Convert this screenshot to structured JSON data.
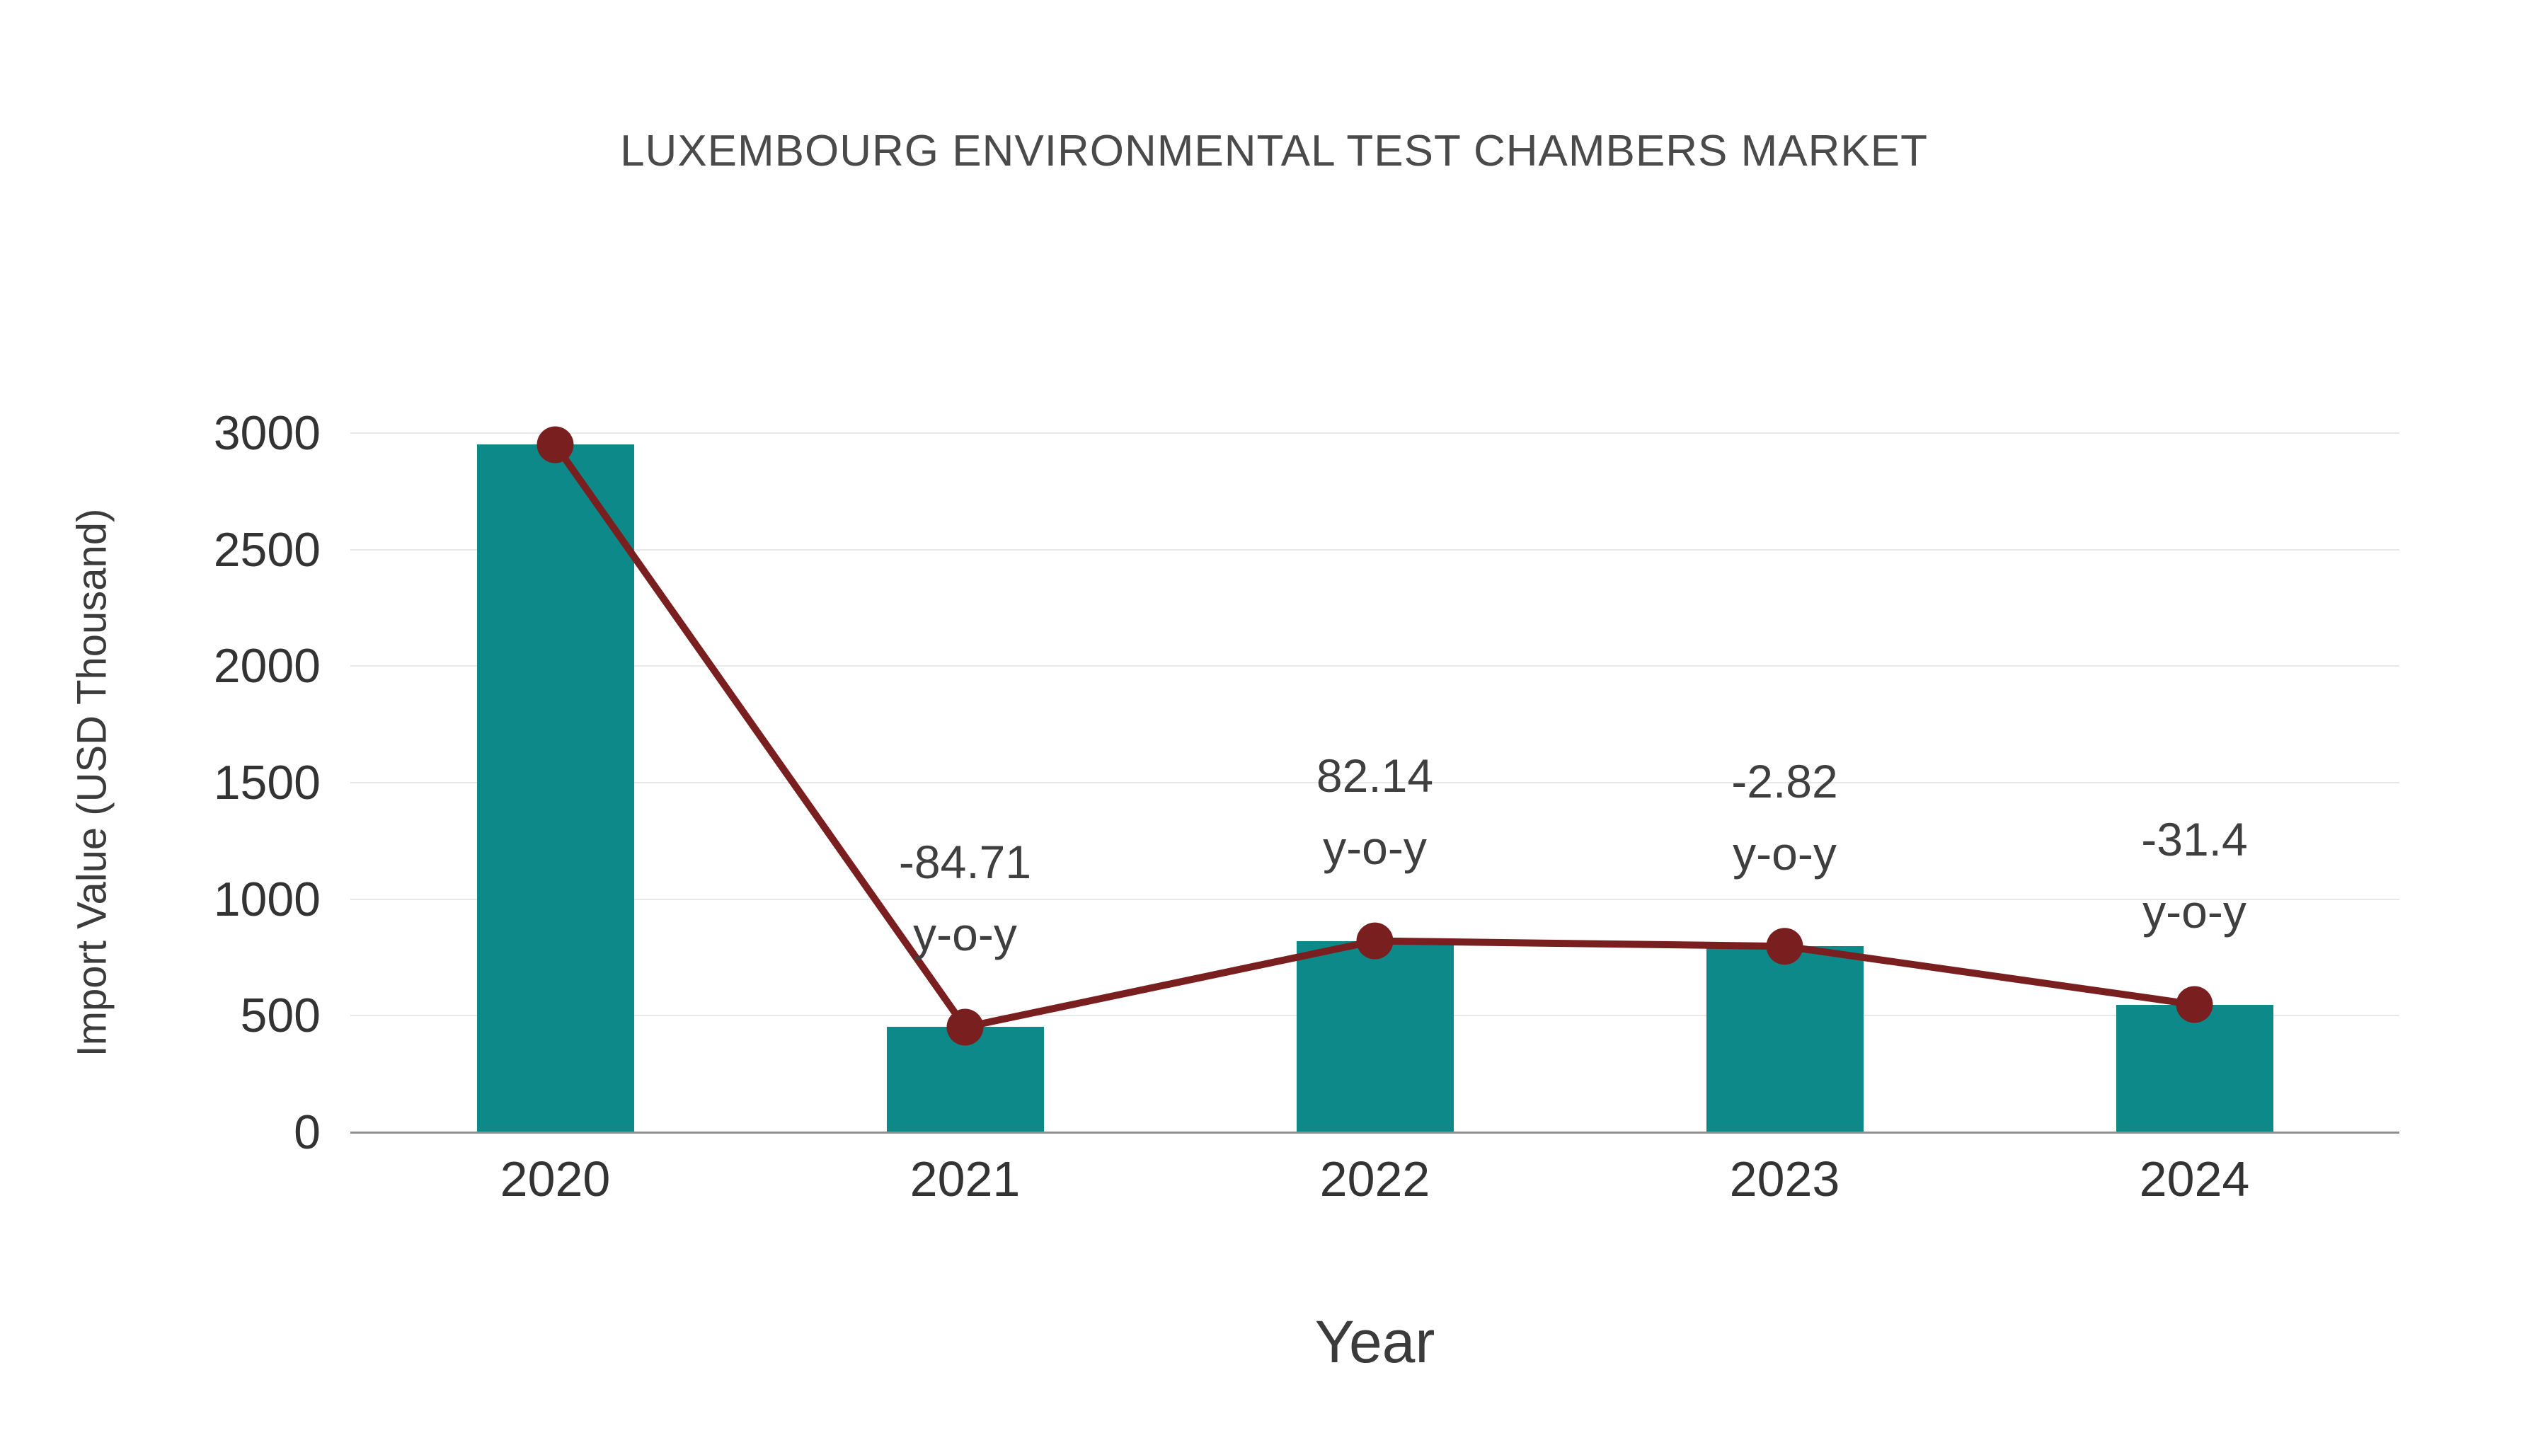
{
  "title": "LUXEMBOURG ENVIRONMENTAL TEST CHAMBERS MARKET",
  "chart_data": {
    "type": "bar",
    "title": "LUXEMBOURG ENVIRONMENTAL TEST CHAMBERS MARKET",
    "xlabel": "Year",
    "ylabel": "Import Value (USD Thousand)",
    "categories": [
      "2020",
      "2021",
      "2022",
      "2023",
      "2024"
    ],
    "series": [
      {
        "name": "Import Value (bars)",
        "type": "bar",
        "values": [
          2950,
          451,
          821,
          798,
          548
        ]
      },
      {
        "name": "Import Value (trend line)",
        "type": "line",
        "values": [
          2950,
          451,
          821,
          798,
          548
        ]
      }
    ],
    "annotations": [
      {
        "category": "2021",
        "lines": [
          "-84.71",
          "y-o-y"
        ]
      },
      {
        "category": "2022",
        "lines": [
          "82.14",
          "y-o-y"
        ]
      },
      {
        "category": "2023",
        "lines": [
          "-2.82",
          "y-o-y"
        ]
      },
      {
        "category": "2024",
        "lines": [
          "-31.4",
          "y-o-y"
        ]
      }
    ],
    "ylim": [
      0,
      3000
    ],
    "yticks": [
      0,
      500,
      1000,
      1500,
      2000,
      2500,
      3000
    ],
    "grid": true,
    "legend": "none",
    "colors": {
      "bar": "#0e8989",
      "line": "#7a1f1f",
      "marker": "#7a1f1f",
      "background": "#ffffff",
      "text": "#3b3b3b",
      "grid": "#e8e8e8",
      "axis": "#8f8f8f"
    }
  }
}
